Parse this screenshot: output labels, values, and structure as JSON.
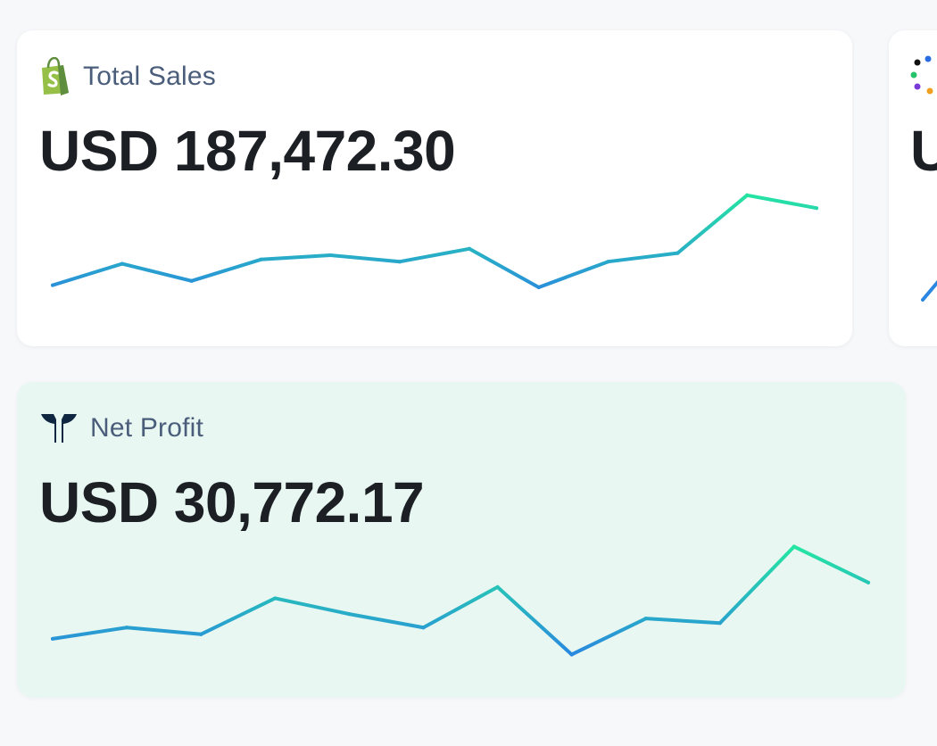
{
  "cards": [
    {
      "id": "total-sales",
      "icon": "shopify-bag-icon",
      "title": "Total Sales",
      "value": "USD 187,472.30",
      "background": "#ffffff"
    },
    {
      "id": "net-profit",
      "icon": "trident-logo-icon",
      "title": "Net Profit",
      "value": "USD 30,772.17",
      "background": "#e8f7f1"
    },
    {
      "id": "partial-card",
      "icon": "dots-circle-icon",
      "title": "",
      "value": "U"
    }
  ],
  "sparkline_colors": {
    "start": "#2a86e0",
    "end": "#25e8a0"
  },
  "chart_data": [
    {
      "type": "line",
      "series_id": "total-sales",
      "x": [
        0,
        1,
        2,
        3,
        4,
        5,
        6,
        7,
        8,
        9,
        10,
        11
      ],
      "values": [
        26,
        36,
        28,
        38,
        40,
        37,
        43,
        25,
        37,
        41,
        68,
        62
      ]
    },
    {
      "type": "line",
      "series_id": "net-profit",
      "x": [
        0,
        1,
        2,
        3,
        4,
        5,
        6,
        7,
        8,
        9,
        10,
        11
      ],
      "values": [
        28,
        33,
        30,
        46,
        39,
        33,
        51,
        21,
        37,
        35,
        69,
        53
      ]
    }
  ]
}
